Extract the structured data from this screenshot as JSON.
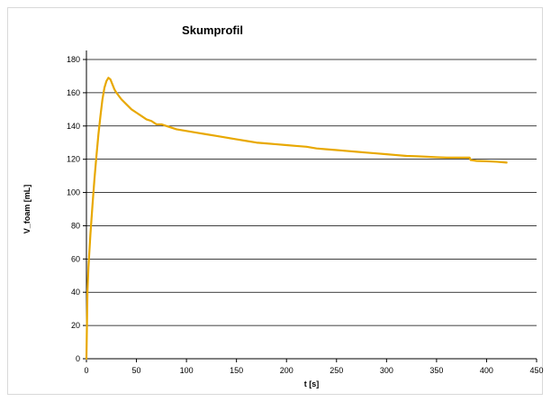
{
  "chart_data": {
    "type": "line",
    "title": "Skumprofil",
    "xlabel": "t [s]",
    "ylabel": "V_foam [mL]",
    "xlim": [
      0,
      450
    ],
    "ylim": [
      0,
      180
    ],
    "x_ticks": [
      0,
      50,
      100,
      150,
      200,
      250,
      300,
      350,
      400,
      450
    ],
    "y_ticks": [
      0,
      20,
      40,
      60,
      80,
      100,
      120,
      140,
      160,
      180
    ],
    "grid": true,
    "legend": "none",
    "series": [
      {
        "color": "#E8A800",
        "x": [
          0,
          1,
          2,
          4,
          6,
          8,
          10,
          12,
          14,
          16,
          18,
          20,
          22,
          24,
          26,
          28,
          30,
          35,
          40,
          45,
          50,
          55,
          60,
          65,
          70,
          75,
          80,
          90,
          100,
          110,
          120,
          130,
          140,
          150,
          160,
          170,
          180,
          190,
          200,
          210,
          220,
          230,
          240,
          250,
          260,
          270,
          280,
          290,
          300,
          310,
          320,
          330,
          340,
          350,
          360,
          370,
          380,
          383,
          384,
          390,
          400,
          410,
          420
        ],
        "y": [
          0,
          40,
          55,
          75,
          92,
          108,
          122,
          135,
          146,
          156,
          163,
          167,
          169,
          168,
          165,
          162,
          160,
          156,
          153,
          150,
          148,
          146,
          144,
          143,
          141,
          141,
          140,
          138,
          137,
          136,
          135,
          134,
          133,
          132,
          131,
          130,
          129.5,
          129,
          128.5,
          128,
          127.5,
          126.5,
          126,
          125.5,
          125,
          124.5,
          124,
          123.5,
          123,
          122.5,
          122,
          121.8,
          121.5,
          121.2,
          121,
          121,
          121,
          121,
          119.5,
          119,
          118.8,
          118.5,
          118
        ]
      }
    ]
  }
}
